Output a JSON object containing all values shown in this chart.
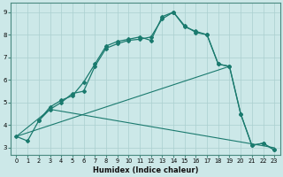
{
  "xlabel": "Humidex (Indice chaleur)",
  "bg_color": "#cce8e8",
  "line_color": "#1a7a6e",
  "grid_color": "#aacfcf",
  "xlim": [
    -0.5,
    23.5
  ],
  "ylim": [
    2.7,
    9.4
  ],
  "xticks": [
    0,
    1,
    2,
    3,
    4,
    5,
    6,
    7,
    8,
    9,
    10,
    11,
    12,
    13,
    14,
    15,
    16,
    17,
    18,
    19,
    20,
    21,
    22,
    23
  ],
  "yticks": [
    3,
    4,
    5,
    6,
    7,
    8,
    9
  ],
  "line1_x": [
    0,
    1,
    2,
    3,
    4,
    5,
    6,
    7,
    8,
    9,
    10,
    11,
    12,
    13,
    14,
    15,
    16,
    17,
    18,
    19,
    20,
    21,
    22,
    23
  ],
  "line1_y": [
    3.5,
    3.3,
    4.2,
    4.7,
    5.0,
    5.4,
    5.5,
    6.6,
    7.4,
    7.6,
    7.75,
    7.8,
    7.9,
    8.7,
    9.0,
    8.4,
    8.1,
    8.0,
    6.7,
    6.6,
    4.5,
    3.1,
    3.2,
    2.9
  ],
  "line2_x": [
    2,
    3,
    4,
    5,
    6,
    7,
    8,
    9,
    10,
    11,
    12,
    13,
    14,
    15,
    16,
    17,
    18,
    19,
    20,
    21,
    22,
    23
  ],
  "line2_y": [
    4.2,
    4.8,
    5.1,
    5.3,
    5.9,
    6.7,
    7.5,
    7.7,
    7.8,
    7.9,
    7.75,
    8.8,
    9.0,
    8.35,
    8.15,
    8.0,
    6.7,
    6.6,
    4.5,
    3.1,
    3.2,
    2.9
  ],
  "line3_x": [
    0,
    19
  ],
  "line3_y": [
    3.5,
    6.6
  ],
  "line4_x": [
    0,
    3,
    23
  ],
  "line4_y": [
    3.5,
    4.7,
    3.0
  ]
}
